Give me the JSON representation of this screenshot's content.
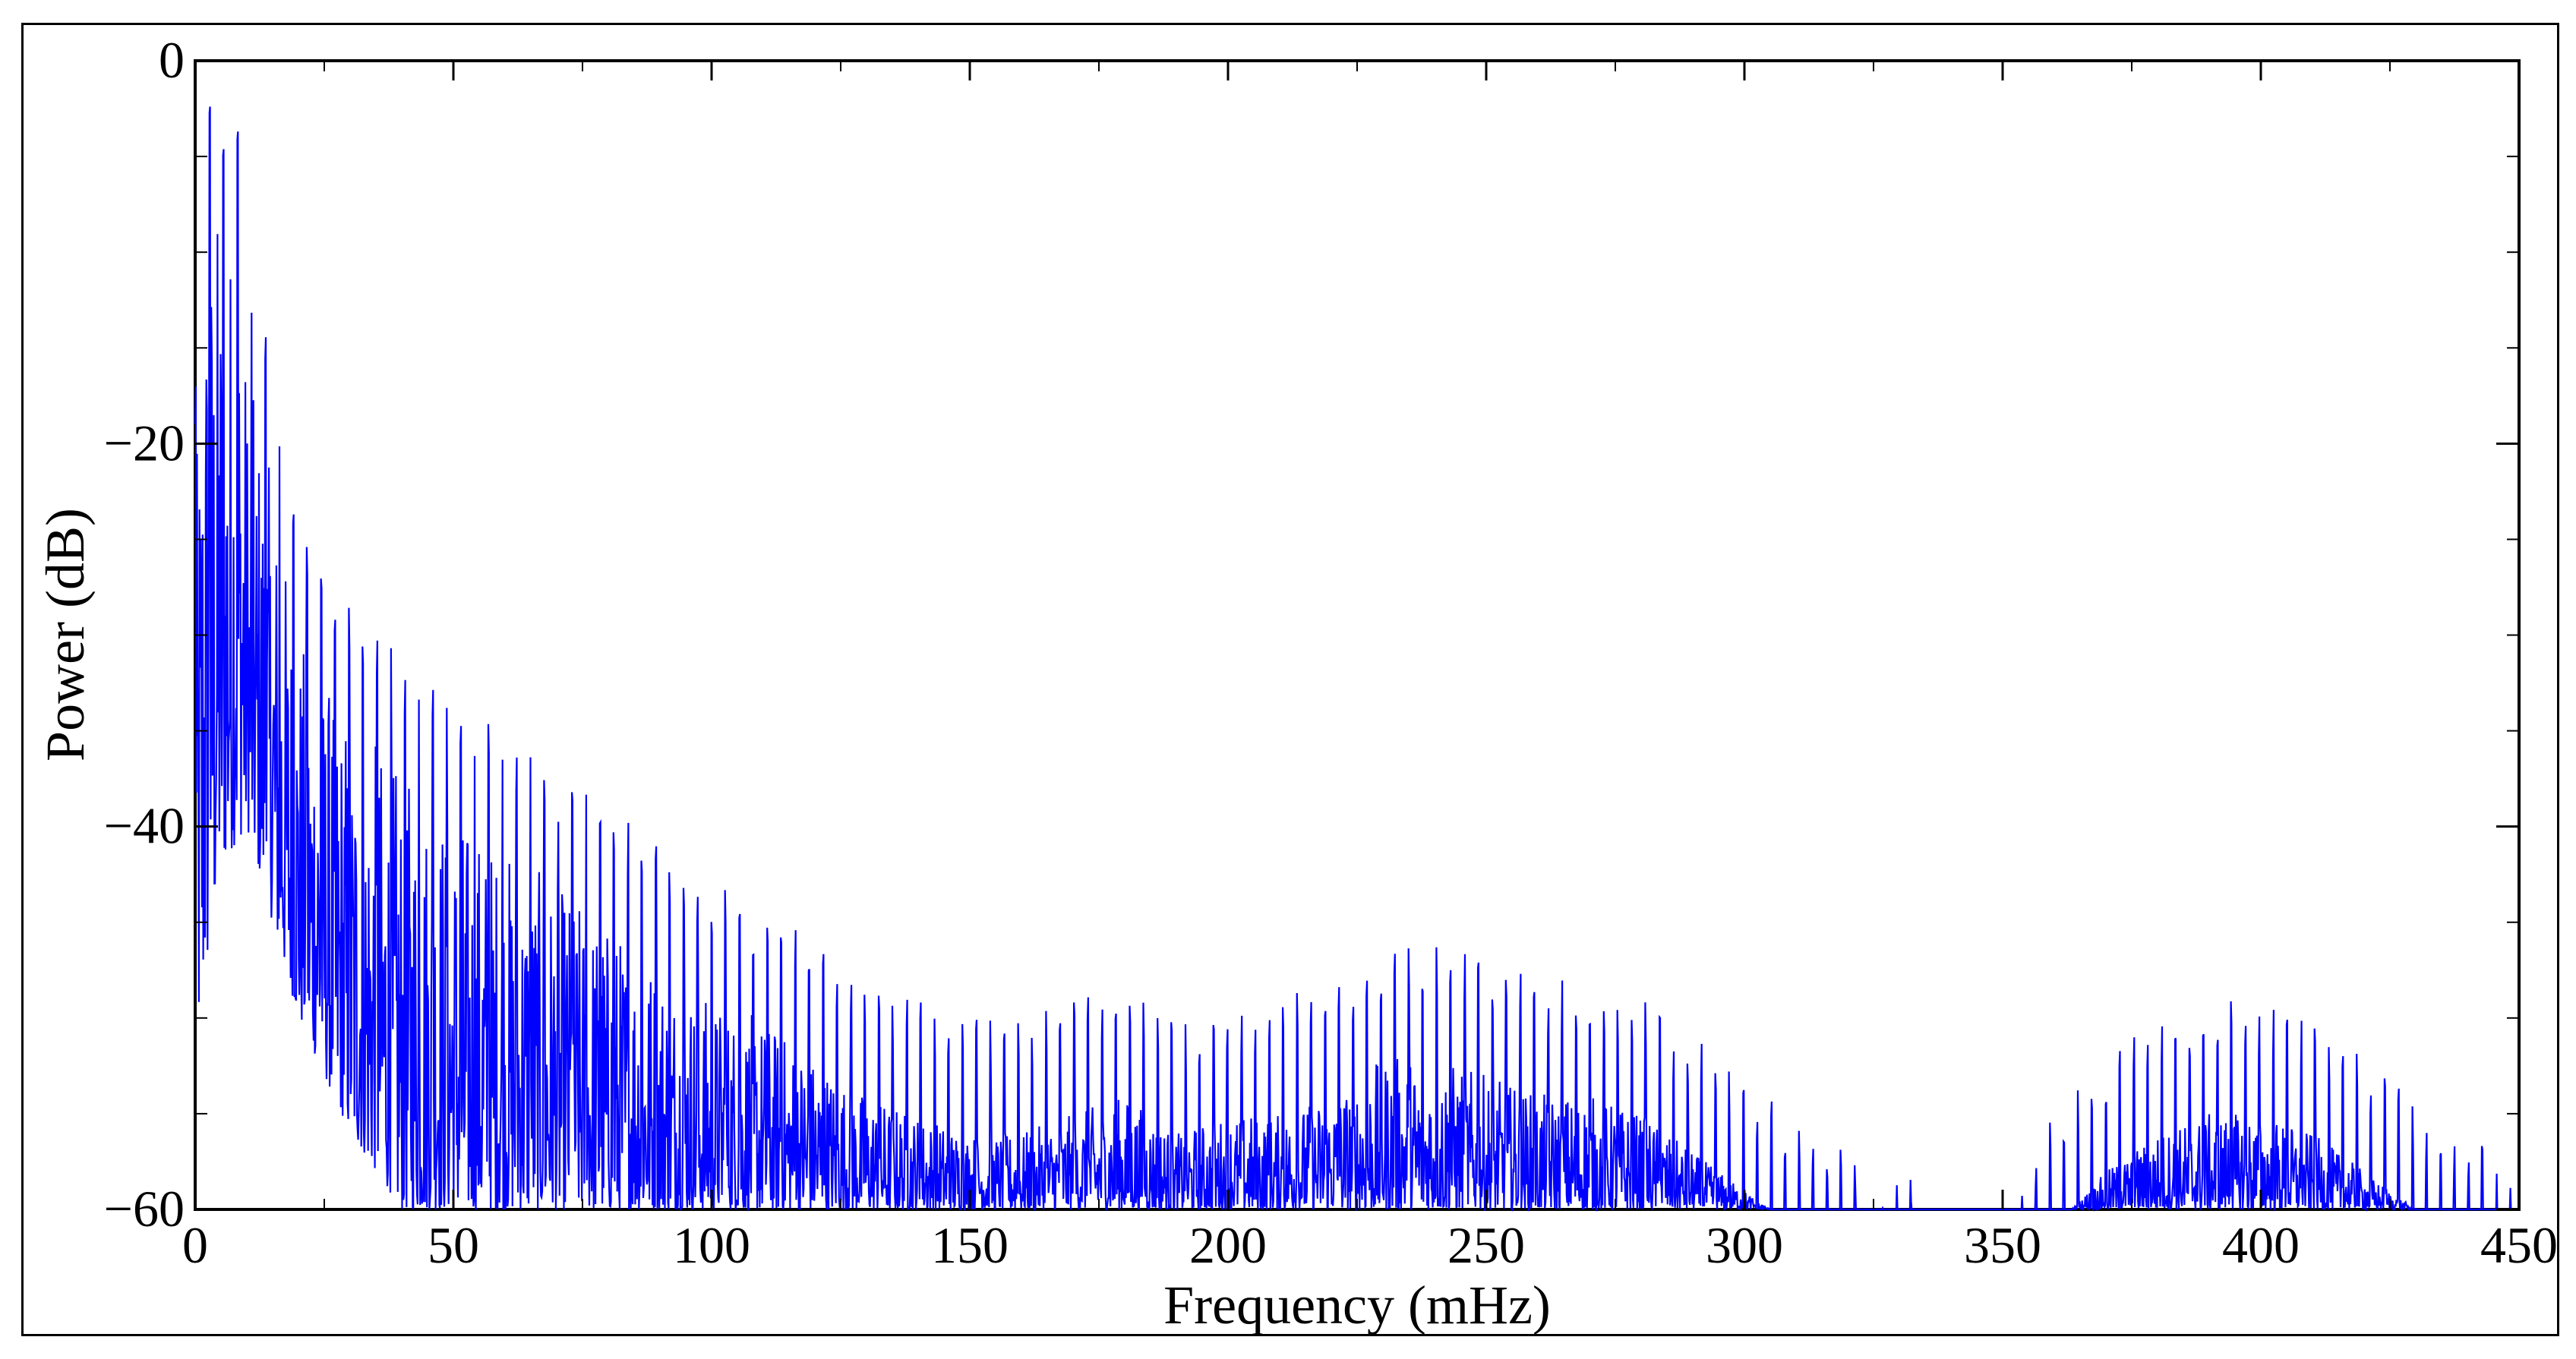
{
  "chart_data": {
    "type": "line",
    "title": "",
    "xlabel": "Frequency (mHz)",
    "ylabel": "Power (dB)",
    "xlim": [
      0,
      450
    ],
    "ylim": [
      -60,
      0
    ],
    "x_ticks": [
      0,
      50,
      100,
      150,
      200,
      250,
      300,
      350,
      400,
      450
    ],
    "x_tick_labels": [
      "0",
      "50",
      "100",
      "150",
      "200",
      "250",
      "300",
      "350",
      "400",
      "450"
    ],
    "y_ticks": [
      0,
      -20,
      -40,
      -60
    ],
    "y_tick_labels": [
      "0",
      "−20",
      "−40",
      "−60"
    ],
    "grid": false,
    "legend": "none",
    "series": [
      {
        "color": "#0000ff",
        "note_spectrum": "dense power spectrum; peak envelope values sampled below",
        "envelope": {
          "x": [
            0,
            2,
            4,
            6,
            8,
            10,
            15,
            20,
            30,
            40,
            50,
            60,
            70,
            80,
            90,
            100,
            110,
            120,
            130,
            140,
            150,
            160,
            170,
            180,
            190,
            200,
            210,
            220,
            230,
            240,
            250,
            260,
            270,
            280,
            290,
            300,
            310,
            320,
            330,
            340,
            350,
            360,
            370,
            380,
            390,
            400,
            410,
            420,
            430,
            440,
            450
          ],
          "y": [
            -17,
            -2,
            -1,
            -3,
            -1,
            -10,
            -16,
            -24,
            -28,
            -31,
            -33,
            -35,
            -37,
            -39,
            -41,
            -43,
            -44,
            -46,
            -48,
            -49,
            -50,
            -50,
            -49,
            -48,
            -50,
            -49,
            -49,
            -48,
            -46,
            -46,
            -47,
            -48,
            -48,
            -49,
            -51,
            -53,
            -55,
            -57,
            -58,
            -59,
            -60,
            -55,
            -52,
            -50,
            -49,
            -49,
            -50,
            -52,
            -54,
            -56,
            -58
          ]
        },
        "floor": {
          "x": [
            0,
            5,
            10,
            20,
            30,
            40,
            60,
            80,
            100,
            150,
            200,
            250,
            300,
            320,
            330,
            350,
            360,
            400,
            450
          ],
          "y": [
            -52,
            -42,
            -40,
            -50,
            -56,
            -60,
            -60,
            -60,
            -60,
            -60,
            -60,
            -60,
            -60,
            -60,
            -60,
            -60,
            -60,
            -60,
            -60
          ]
        }
      }
    ]
  }
}
